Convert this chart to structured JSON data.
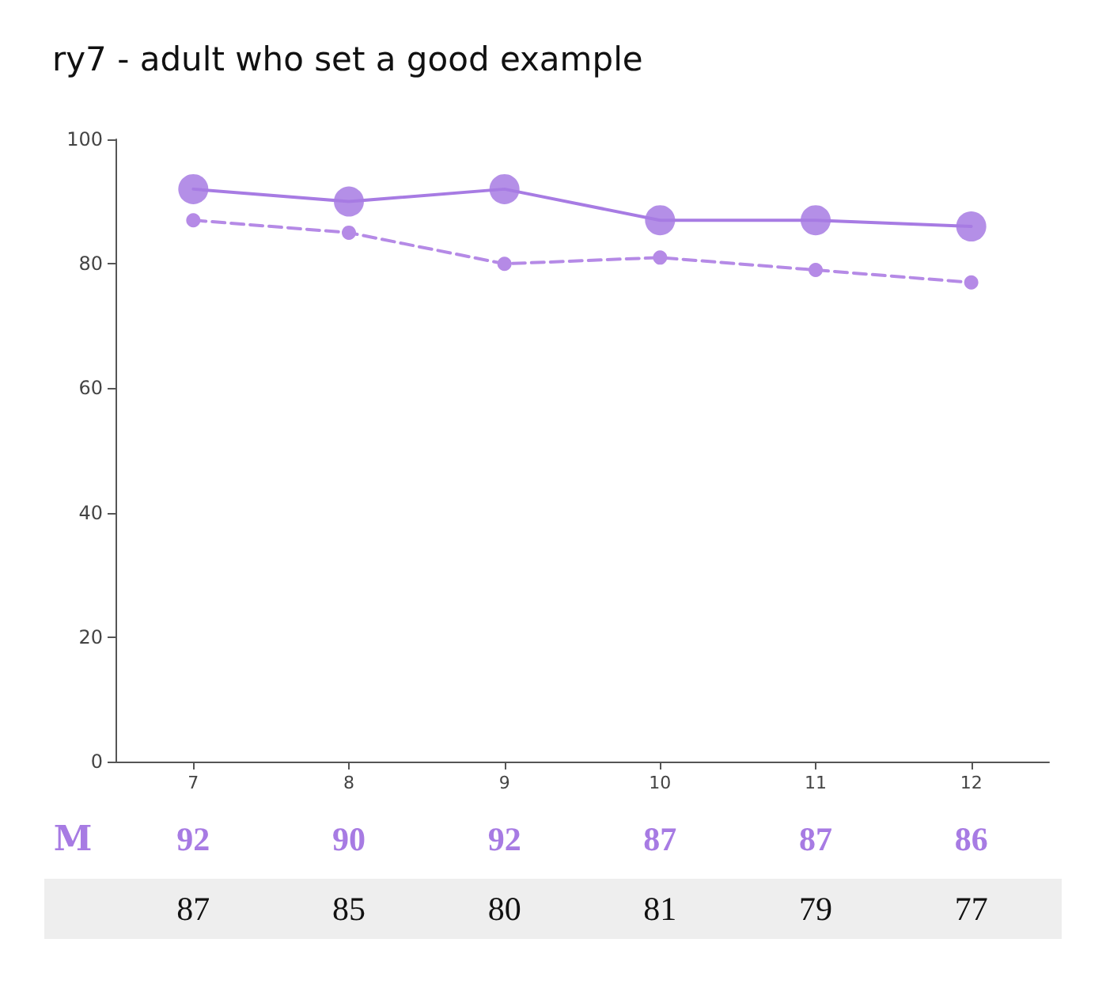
{
  "chart_data": {
    "type": "line",
    "title": "ry7 - adult who set a good example",
    "categories": [
      "7",
      "8",
      "9",
      "10",
      "11",
      "12"
    ],
    "series": [
      {
        "name": "M",
        "color": "#a77be3",
        "values": [
          92,
          90,
          92,
          87,
          87,
          86
        ],
        "line_style": "solid"
      },
      {
        "color": "#b58ae6",
        "values": [
          87,
          85,
          80,
          81,
          79,
          77
        ],
        "line_style": "dashed"
      }
    ],
    "ylim": [
      0,
      100
    ],
    "yticks": [
      0,
      20,
      40,
      60,
      80,
      100
    ],
    "grid": false,
    "legend": false,
    "marker": "circle",
    "data_labels": true
  }
}
